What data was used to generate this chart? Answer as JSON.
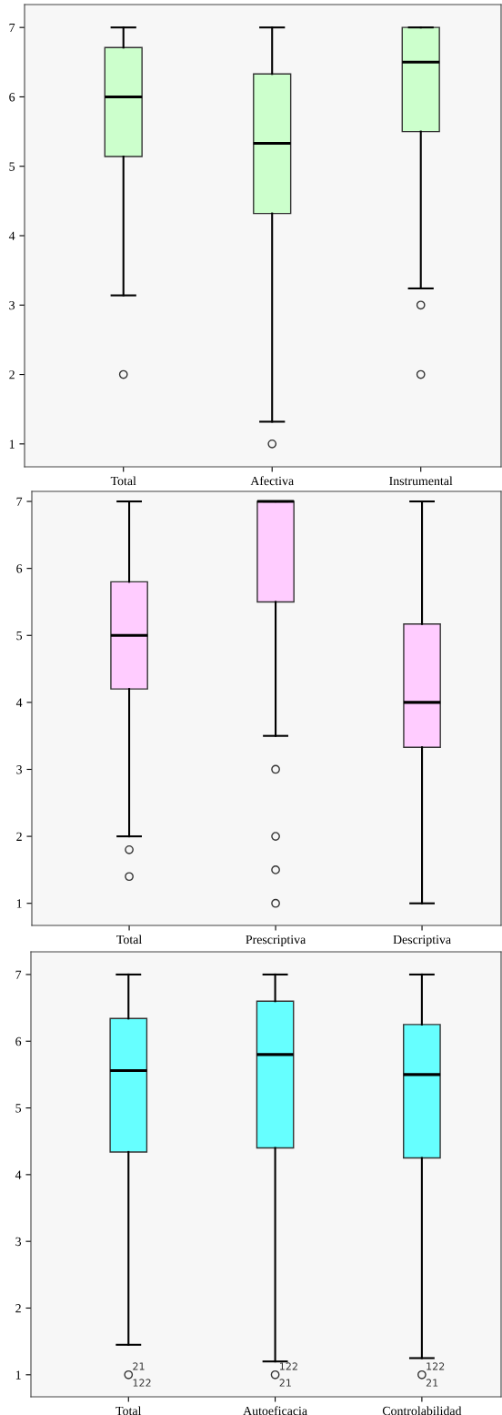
{
  "chart_data": [
    {
      "type": "box",
      "categories": [
        "Total",
        "Afectiva",
        "Instrumental"
      ],
      "color": "#ccffcc",
      "ylim": [
        0.67,
        7.33
      ],
      "yticks": [
        1,
        2,
        3,
        4,
        5,
        6,
        7
      ],
      "grid": false,
      "boxes": [
        {
          "low": 3.14,
          "q1": 5.14,
          "median": 6,
          "q3": 6.71,
          "high": 7,
          "outliers": [
            2
          ]
        },
        {
          "low": 1.32,
          "q1": 4.32,
          "median": 5.33,
          "q3": 6.33,
          "high": 7,
          "outliers": [
            1
          ]
        },
        {
          "low": 3.24,
          "q1": 5.5,
          "median": 6.5,
          "q3": 7,
          "high": 7,
          "outliers": [
            3,
            2
          ]
        }
      ]
    },
    {
      "type": "box",
      "categories": [
        "Total",
        "Prescriptiva",
        "Descriptiva"
      ],
      "color": "#ffccff",
      "ylim": [
        0.67,
        7.15
      ],
      "yticks": [
        1,
        2,
        3,
        4,
        5,
        6,
        7
      ],
      "grid": false,
      "boxes": [
        {
          "low": 2,
          "q1": 4.2,
          "median": 5,
          "q3": 5.8,
          "high": 7,
          "outliers": [
            1.8,
            1.4
          ]
        },
        {
          "low": 3.5,
          "q1": 5.5,
          "median": 7,
          "q3": 7,
          "high": 7,
          "outliers": [
            3,
            2,
            1.5,
            1
          ]
        },
        {
          "low": 1,
          "q1": 3.33,
          "median": 4,
          "q3": 5.17,
          "high": 7
        }
      ]
    },
    {
      "type": "box",
      "categories": [
        "Total",
        "Autoeficacia",
        "Controlabilidad"
      ],
      "color": "#66ffff",
      "ylim": [
        0.67,
        7.34
      ],
      "yticks": [
        1,
        2,
        3,
        4,
        5,
        6,
        7
      ],
      "grid": false,
      "boxes": [
        {
          "low": 1.45,
          "q1": 4.34,
          "median": 5.56,
          "q3": 6.34,
          "high": 7,
          "outliers": [
            1
          ]
        },
        {
          "low": 1.2,
          "q1": 4.4,
          "median": 5.8,
          "q3": 6.6,
          "high": 7,
          "outliers": [
            1
          ]
        },
        {
          "low": 1.25,
          "q1": 4.25,
          "median": 5.5,
          "q3": 6.25,
          "high": 7,
          "outliers": [
            1
          ]
        }
      ],
      "annotations": [
        "21",
        "122",
        "122",
        "21",
        "122",
        "21"
      ]
    }
  ]
}
